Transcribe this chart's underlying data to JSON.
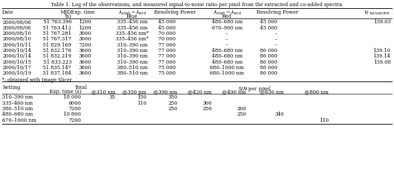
{
  "title": "Table 1. Log of the observations, and measured signal-to-noise ratio per pixel from the extracted and co-added spectra",
  "obs_rows": [
    [
      "2000/08/06",
      "51 763.396",
      "1200",
      "335–456 nm",
      "45 000",
      "480–680 nm",
      "45 000",
      "139.03"
    ],
    [
      "2000/08/06",
      "51 763.412",
      "1200",
      "335–456 nm",
      "45 000",
      "670–900 nm",
      "45 000",
      ""
    ],
    [
      "2000/08/10",
      "51 767.281",
      "3000",
      "335–456 nm*",
      "70 000",
      "–",
      "–",
      ""
    ],
    [
      "2000/08/10",
      "51 767.317",
      "3000",
      "335–456 nm*",
      "70 000",
      "–",
      "–",
      ""
    ],
    [
      "2000/10/11",
      "51 829.169",
      "7200",
      "310–390 nm",
      "77 000",
      "–",
      "–",
      ""
    ],
    [
      "2000/10/14",
      "51 832.176",
      "3600",
      "310–390 nm",
      "77 000",
      "480–680 nm",
      "86 000",
      "139.10"
    ],
    [
      "2000/10/14",
      "51 832.219",
      "3600",
      "310–390 nm",
      "77 000",
      "480–680 nm",
      "86 000",
      "139.14"
    ],
    [
      "2000/10/15",
      "51 833.223",
      "3600",
      "310–390 nm",
      "77 000",
      "480–680 nm",
      "86 000",
      "139.08"
    ],
    [
      "2000/10/17",
      "51 835.147",
      "3600",
      "380–510 nm",
      "75 000",
      "680–1000 nm",
      "86 000",
      ""
    ],
    [
      "2000/10/19",
      "51 837.184",
      "3600",
      "380–510 nm",
      "75 000",
      "680–1000 nm",
      "86 000",
      ""
    ]
  ],
  "footnote": "*: obtained with Image Slicer",
  "snr_rows": [
    [
      "310–390 nm",
      "18 000",
      "35",
      "150",
      "350",
      "",
      "",
      "",
      ""
    ],
    [
      "335–460 nm",
      "6000",
      "",
      "110",
      "250",
      "300",
      "",
      "",
      ""
    ],
    [
      "380–510 nm",
      "7200",
      "",
      "",
      "250",
      "250",
      "200",
      "",
      ""
    ],
    [
      "480–680 nm",
      "10 800",
      "",
      "",
      "",
      "",
      "250",
      "340",
      ""
    ],
    [
      "670–1000 nm",
      "7200",
      "",
      "",
      "",
      "",
      "",
      "",
      "110"
    ]
  ],
  "bg_color": "#ffffff",
  "line_color": "#000000",
  "text_color": "#000000",
  "font_size": 5.2
}
